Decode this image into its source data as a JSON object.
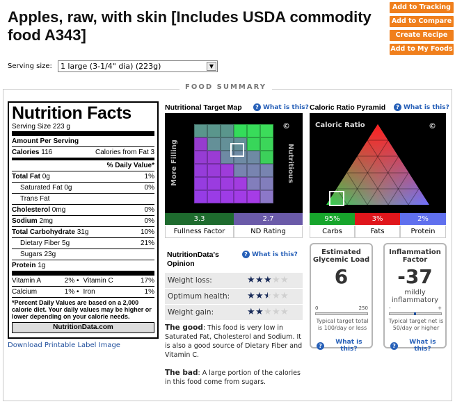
{
  "page": {
    "title": "Apples, raw, with skin [Includes USDA commodity food A343]"
  },
  "actions": [
    "Add to Tracking",
    "Add to Compare",
    "Create Recipe",
    "Add to My Foods"
  ],
  "serving": {
    "label": "Serving size:",
    "selected": "1 large (3-1/4\" dia) (223g)"
  },
  "summary_label": "FOOD SUMMARY",
  "nutrition_facts": {
    "title": "Nutrition Facts",
    "serving_size": "Serving Size",
    "serving_value": "223 g",
    "amount_per_serving": "Amount Per Serving",
    "calories_label": "Calories",
    "calories_value": "116",
    "calories_fat_label": "Calories from Fat",
    "calories_fat_value": "3",
    "daily_value_header": "% Daily Value*",
    "total_fat": {
      "label": "Total Fat",
      "amount": "0g",
      "dv": "1%"
    },
    "saturated_fat": {
      "label": "Saturated Fat",
      "amount": "0g",
      "dv": "0%"
    },
    "trans_fat": {
      "label": "Trans Fat",
      "amount": ""
    },
    "cholesterol": {
      "label": "Cholesterol",
      "amount": "0mg",
      "dv": "0%"
    },
    "sodium": {
      "label": "Sodium",
      "amount": "2mg",
      "dv": "0%"
    },
    "total_carb": {
      "label": "Total Carbohydrate",
      "amount": "31g",
      "dv": "10%"
    },
    "dietary_fiber": {
      "label": "Dietary Fiber",
      "amount": "5g",
      "dv": "21%"
    },
    "sugars": {
      "label": "Sugars",
      "amount": "23g"
    },
    "protein": {
      "label": "Protein",
      "amount": "1g"
    },
    "vitamin_a": {
      "label": "Vitamin A",
      "dv": "2%"
    },
    "vitamin_c": {
      "label": "Vitamin C",
      "dv": "17%"
    },
    "calcium": {
      "label": "Calcium",
      "dv": "1%"
    },
    "iron": {
      "label": "Iron",
      "dv": "1%"
    },
    "footnote": "*Percent Daily Values are based on a 2,000 calorie diet. Your daily values may be higher or lower depending on your calorie needs.",
    "site": "NutritionData.com"
  },
  "download_label": "Download Printable Label Image",
  "target_map": {
    "header": "Nutritional Target Map",
    "what": "What is this?",
    "left_label": "More Filling",
    "right_label": "Nutritious",
    "copyright": "©",
    "fullness_value": "3.3",
    "fullness_label": "Fullness Factor",
    "nd_value": "2.7",
    "nd_label": "ND Rating"
  },
  "pyramid": {
    "header": "Caloric Ratio Pyramid",
    "what": "What is this?",
    "inner_label": "Caloric Ratio",
    "copyright": "©",
    "carbs_value": "95%",
    "carbs_label": "Carbs",
    "fats_value": "3%",
    "fats_label": "Fats",
    "protein_value": "2%",
    "protein_label": "Protein"
  },
  "opinion": {
    "title": "NutritionData's Opinion",
    "what": "What is this?",
    "rows": [
      {
        "label": "Weight loss:",
        "stars": 3
      },
      {
        "label": "Optimum health:",
        "stars": 2.5
      },
      {
        "label": "Weight gain:",
        "stars": 2
      }
    ],
    "good_head": "The good",
    "good_text": ": This food is very low in Saturated Fat, Cholesterol and Sodium. It is also a good source of Dietary Fiber and Vitamin C.",
    "bad_head": "The bad",
    "bad_text": ": A large portion of the calories in this food come from sugars."
  },
  "glycemic": {
    "title": "Estimated Glycemic Load",
    "value": "6",
    "scale_min": "0",
    "scale_max": "250",
    "tip": "Typical target total is 100/day or less",
    "what": "What is this?"
  },
  "inflammation": {
    "title": "Inflammation Factor",
    "value": "-37",
    "rating": "mildly inflammatory",
    "scale_min": "-",
    "scale_max": "+",
    "tip": "Typical target net is 50/day or higher",
    "what": "What is this?"
  },
  "colors": {
    "orange": "#f07f1c",
    "link": "#2760b8",
    "fullness_bar": "#1e6b2e",
    "nd_bar": "#6a5aa8",
    "carbs_bar": "#17a52c",
    "fats_bar": "#e0161c",
    "protein_bar": "#6070ee"
  }
}
